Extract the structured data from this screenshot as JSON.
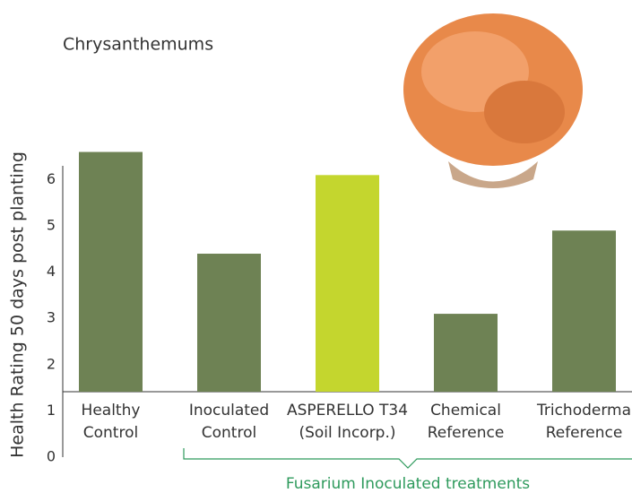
{
  "chart_data": {
    "type": "bar",
    "title": "Chrysanthemums",
    "y_label": "Health Rating 50 days post planting",
    "categories": [
      [
        "Healthy",
        "Control"
      ],
      [
        "Inoculated",
        "Control"
      ],
      [
        "ASPERELLO T34",
        "(Soil Incorp.)"
      ],
      [
        "Chemical",
        "Reference"
      ],
      [
        "Trichoderma",
        "Reference"
      ]
    ],
    "values": [
      6.6,
      4.4,
      6.1,
      3.1,
      4.9
    ],
    "colors": [
      "#6e8254",
      "#6e8254",
      "#c4d62e",
      "#6e8254",
      "#6e8254"
    ],
    "ylim": [
      0,
      6.3
    ],
    "yticks": [
      0,
      1,
      2,
      3,
      4,
      5,
      6
    ],
    "annotation": "Fusarium Inoculated treatments",
    "annotation_color": "#2e9a5c"
  }
}
